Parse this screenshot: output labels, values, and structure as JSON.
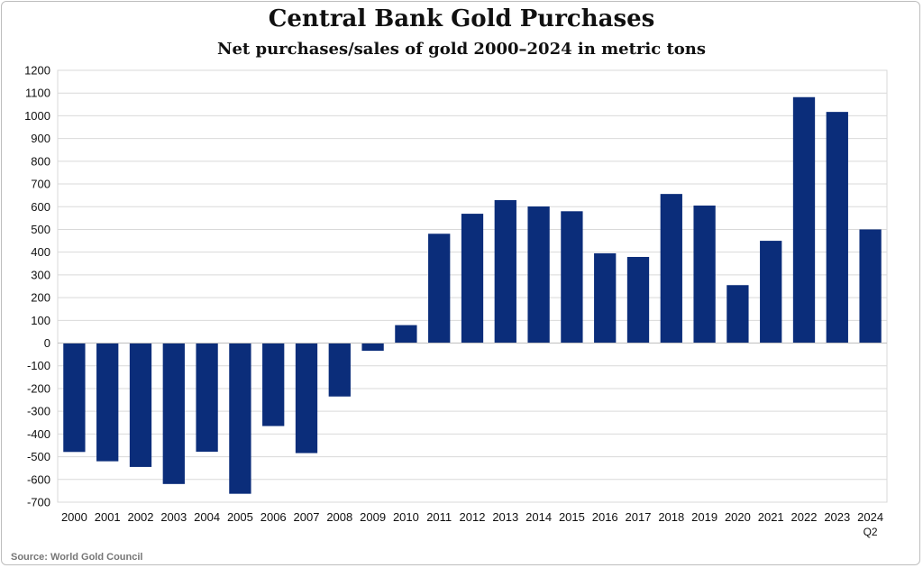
{
  "chart_data": {
    "type": "bar",
    "title": "Central Bank Gold Purchases",
    "subtitle": "Net purchases/sales of gold 2000–2024 in metric tons",
    "xlabel": "",
    "ylabel": "",
    "ylim": [
      -700,
      1200
    ],
    "yticks": [
      1200,
      1100,
      1000,
      900,
      800,
      700,
      600,
      500,
      400,
      300,
      200,
      100,
      0,
      -100,
      -200,
      -300,
      -400,
      -500,
      -600,
      -700
    ],
    "categories": [
      "2000",
      "2001",
      "2002",
      "2003",
      "2004",
      "2005",
      "2006",
      "2007",
      "2008",
      "2009",
      "2010",
      "2011",
      "2012",
      "2013",
      "2014",
      "2015",
      "2016",
      "2017",
      "2018",
      "2019",
      "2020",
      "2021",
      "2022",
      "2023",
      "2024"
    ],
    "category_sublabels": {
      "2024": "Q2"
    },
    "values": [
      -479,
      -520,
      -545,
      -620,
      -478,
      -663,
      -365,
      -484,
      -235,
      -34,
      79,
      481,
      569,
      629,
      601,
      580,
      395,
      379,
      656,
      605,
      255,
      450,
      1082,
      1017,
      500
    ],
    "bar_color": "#0b2d7a",
    "grid": true,
    "source": "Source: World Gold Council"
  }
}
